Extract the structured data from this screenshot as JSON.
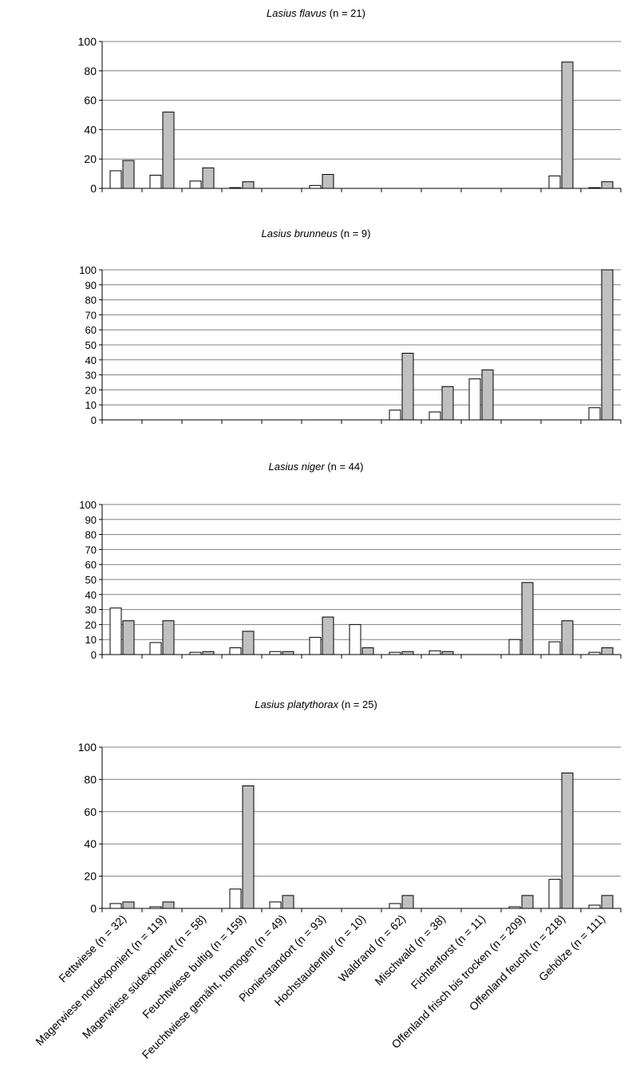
{
  "categories": [
    "Fettwiese (n = 32)",
    "Magerwiese nordexponiert (n = 119)",
    "Magerwiese südexponiert (n = 58)",
    "Feuchtwiese bultig (n = 159)",
    "Feuchtwiese gemäht, homogen (n = 49)",
    "Pionierstandort (n = 93)",
    "Hochstaudenflur (n = 10)",
    "Waldrand (n = 62)",
    "Mischwald (n = 38)",
    "Fichtenforst (n = 11)",
    "Offenland frisch bis trocken (n = 209)",
    "Offenland feucht (n = 218)",
    "Gehölze (n = 111)"
  ],
  "colors": {
    "series_a": "#ffffff",
    "series_b": "#c0c0c0",
    "outline": "#000000",
    "grid": "#808080"
  },
  "chart_data": [
    {
      "type": "bar",
      "title_species": "Lasius flavus",
      "title_suffix": " (n = 21)",
      "ylim": [
        0,
        100
      ],
      "yticks": [
        0,
        20,
        40,
        60,
        80,
        100
      ],
      "series": [
        {
          "values": [
            12,
            9,
            5,
            0.5,
            0,
            2,
            0,
            0,
            0,
            0,
            0,
            8.5,
            0.5
          ]
        },
        {
          "values": [
            19,
            52,
            14,
            4.5,
            0,
            9.5,
            0,
            0,
            0,
            0,
            0,
            86,
            4.5
          ]
        }
      ]
    },
    {
      "type": "bar",
      "title_species": "Lasius brunneus",
      "title_suffix": " (n = 9)",
      "ylim": [
        0,
        100
      ],
      "yticks": [
        0,
        10,
        20,
        30,
        40,
        50,
        60,
        70,
        80,
        90,
        100
      ],
      "series": [
        {
          "values": [
            0,
            0,
            0,
            0,
            0,
            0,
            0,
            6.5,
            5.3,
            27.3,
            0,
            0,
            8.1
          ]
        },
        {
          "values": [
            0,
            0,
            0,
            0,
            0,
            0,
            0,
            44.4,
            22.2,
            33.3,
            0,
            0,
            100
          ]
        }
      ]
    },
    {
      "type": "bar",
      "title_species": "Lasius niger",
      "title_suffix": " (n = 44)",
      "ylim": [
        0,
        100
      ],
      "yticks": [
        0,
        10,
        20,
        30,
        40,
        50,
        60,
        70,
        80,
        90,
        100
      ],
      "series": [
        {
          "values": [
            31,
            8,
            1.5,
            4.5,
            2,
            11.5,
            20,
            1.5,
            2.5,
            0,
            10,
            8.5,
            1.5
          ]
        },
        {
          "values": [
            22.5,
            22.5,
            2,
            15.5,
            2,
            25,
            4.5,
            2,
            2,
            0,
            48,
            22.5,
            4.5
          ]
        }
      ]
    },
    {
      "type": "bar",
      "title_species": "Lasius platythorax",
      "title_suffix": " (n = 25)",
      "ylim": [
        0,
        100
      ],
      "yticks": [
        0,
        20,
        40,
        60,
        80,
        100
      ],
      "series": [
        {
          "values": [
            3,
            1,
            0,
            12,
            4,
            0,
            0,
            3,
            0,
            0,
            1,
            18,
            2
          ]
        },
        {
          "values": [
            4,
            4,
            0,
            76,
            8,
            0,
            0,
            8,
            0,
            0,
            8,
            84,
            8
          ]
        }
      ]
    }
  ]
}
